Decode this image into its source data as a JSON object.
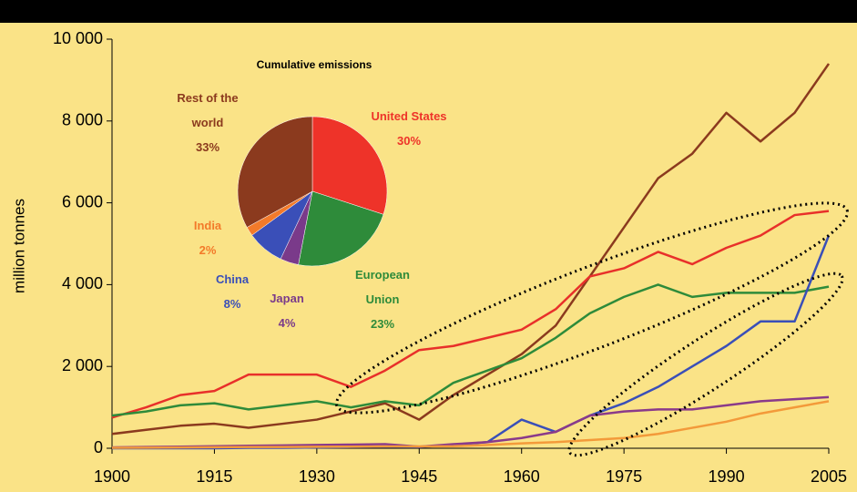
{
  "chart_data": [
    {
      "type": "line",
      "y_label": "million tonnes",
      "x": [
        1900,
        1905,
        1910,
        1915,
        1920,
        1925,
        1930,
        1935,
        1940,
        1945,
        1950,
        1955,
        1960,
        1965,
        1970,
        1975,
        1980,
        1985,
        1990,
        1995,
        2000,
        2005
      ],
      "xlim": [
        1900,
        2005
      ],
      "xticks": [
        1900,
        1915,
        1930,
        1945,
        1960,
        1975,
        1990,
        2005
      ],
      "ylim": [
        0,
        10000
      ],
      "yticks": [
        0,
        {
          "value": 2000,
          "label": "2 000"
        },
        {
          "value": 4000,
          "label": "4 000"
        },
        {
          "value": 6000,
          "label": "6 000"
        },
        {
          "value": 8000,
          "label": "8 000"
        },
        {
          "value": 10000,
          "label": "10 000"
        }
      ],
      "series": [
        {
          "color": "#8b3a1e",
          "values": [
            350,
            450,
            550,
            600,
            500,
            600,
            700,
            900,
            1100,
            700,
            1300,
            1800,
            2300,
            3000,
            4200,
            5400,
            6600,
            7200,
            8200,
            7500,
            8200,
            9400
          ]
        },
        {
          "color": "#e8302a",
          "values": [
            750,
            1000,
            1300,
            1400,
            1800,
            1800,
            1800,
            1500,
            1900,
            2400,
            2500,
            2700,
            2900,
            3400,
            4200,
            4400,
            4800,
            4500,
            4900,
            5200,
            5700,
            5800
          ]
        },
        {
          "color": "#2e8b3a",
          "values": [
            800,
            900,
            1050,
            1100,
            950,
            1050,
            1150,
            1000,
            1150,
            1050,
            1600,
            1900,
            2200,
            2700,
            3300,
            3700,
            4000,
            3700,
            3800,
            3800,
            3800,
            3950
          ]
        },
        {
          "color": "#3a4fb8",
          "values": [
            0,
            0,
            0,
            0,
            10,
            10,
            20,
            30,
            40,
            30,
            80,
            150,
            700,
            400,
            800,
            1100,
            1500,
            2000,
            2500,
            3100,
            3100,
            5200
          ]
        },
        {
          "color": "#8a3a8a",
          "values": [
            20,
            30,
            40,
            50,
            60,
            70,
            80,
            90,
            100,
            40,
            100,
            150,
            250,
            400,
            800,
            900,
            950,
            950,
            1050,
            1150,
            1200,
            1250
          ]
        },
        {
          "color": "#f39a3a",
          "values": [
            10,
            15,
            20,
            25,
            30,
            30,
            35,
            40,
            45,
            45,
            50,
            80,
            120,
            150,
            200,
            250,
            350,
            500,
            650,
            850,
            1000,
            1150
          ]
        }
      ]
    },
    {
      "type": "pie",
      "title": "Cumulative emissions",
      "categories": [
        "United States",
        "European Union",
        "Japan",
        "China",
        "India",
        "Rest of the world"
      ],
      "values": [
        30,
        23,
        4,
        8,
        2,
        33
      ],
      "value_labels": [
        "30%",
        "23%",
        "4%",
        "8%",
        "2%",
        "33%"
      ],
      "colors": [
        "#ee3329",
        "#2e8b3a",
        "#7a3a8a",
        "#3a4fb8",
        "#f37a2a",
        "#8b3a1e"
      ]
    }
  ]
}
